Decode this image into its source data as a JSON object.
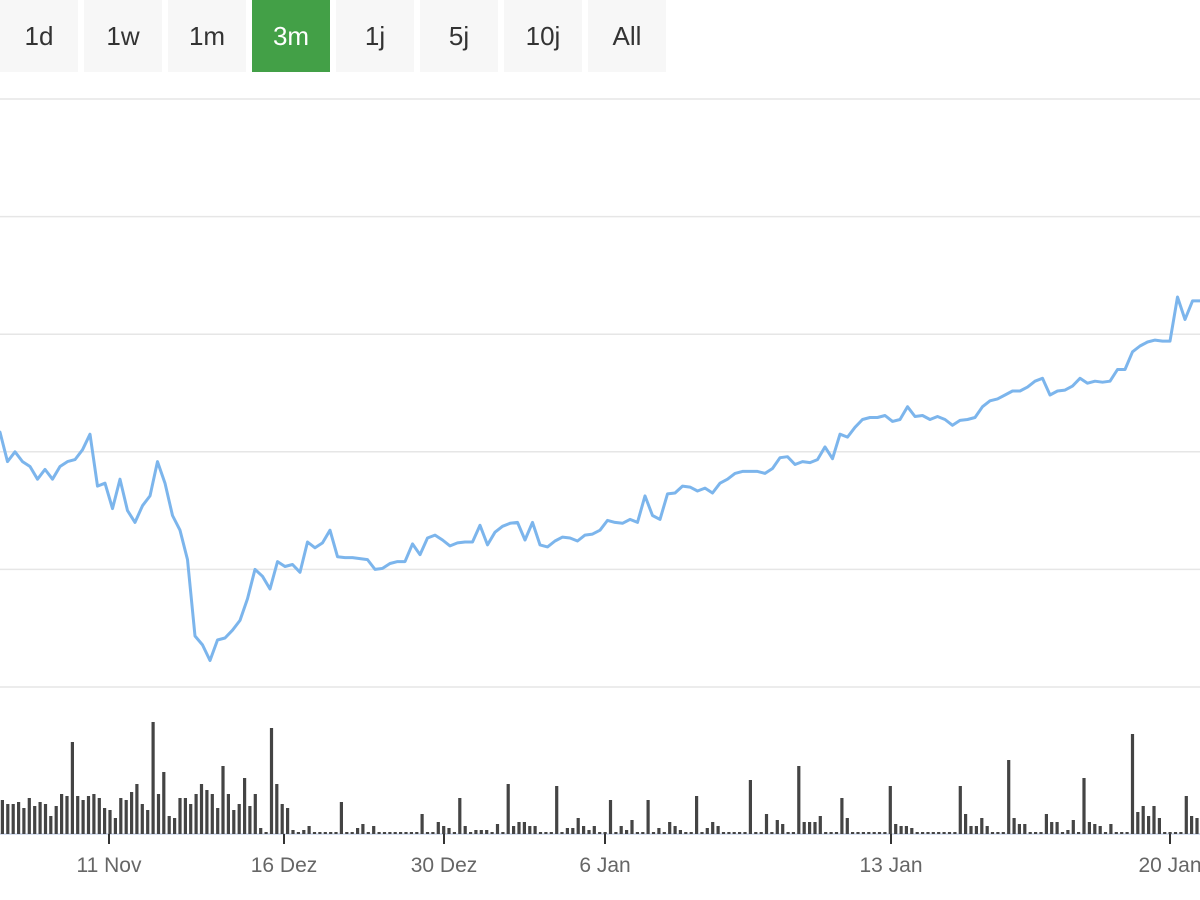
{
  "range_tabs": [
    {
      "label": "1d",
      "active": false
    },
    {
      "label": "1w",
      "active": false
    },
    {
      "label": "1m",
      "active": false
    },
    {
      "label": "3m",
      "active": true
    },
    {
      "label": "1j",
      "active": false
    },
    {
      "label": "5j",
      "active": false
    },
    {
      "label": "10j",
      "active": false
    },
    {
      "label": "All",
      "active": false
    }
  ],
  "colors": {
    "active_tab": "#43a047",
    "price_line": "#7cb5ec",
    "volume_bars": "#444444",
    "grid": "#e6e6e6"
  },
  "chart_data": [
    {
      "type": "line",
      "name": "price",
      "title": "",
      "xlabel": "",
      "ylabel": "",
      "grid": true,
      "ylim": [
        0,
        6
      ],
      "y_ticks_shown": false,
      "x_tick_labels": [
        "11 Nov",
        "16 Dez",
        "30 Dez",
        "6 Jan",
        "13 Jan",
        "20 Jan"
      ],
      "values": [
        2.6,
        2.3,
        2.4,
        2.3,
        2.25,
        2.12,
        2.22,
        2.12,
        2.25,
        2.3,
        2.32,
        2.42,
        2.58,
        2.05,
        2.08,
        1.82,
        2.12,
        1.8,
        1.68,
        1.85,
        1.95,
        2.3,
        2.08,
        1.75,
        1.6,
        1.3,
        0.52,
        0.43,
        0.27,
        0.48,
        0.5,
        0.58,
        0.68,
        0.9,
        1.2,
        1.13,
        1.0,
        1.28,
        1.23,
        1.25,
        1.17,
        1.48,
        1.42,
        1.47,
        1.6,
        1.33,
        1.32,
        1.32,
        1.31,
        1.3,
        1.2,
        1.21,
        1.26,
        1.28,
        1.28,
        1.46,
        1.35,
        1.52,
        1.55,
        1.5,
        1.44,
        1.47,
        1.48,
        1.48,
        1.65,
        1.45,
        1.58,
        1.64,
        1.67,
        1.68,
        1.5,
        1.68,
        1.45,
        1.43,
        1.49,
        1.53,
        1.52,
        1.49,
        1.55,
        1.56,
        1.6,
        1.7,
        1.68,
        1.67,
        1.71,
        1.68,
        1.95,
        1.75,
        1.71,
        1.97,
        1.98,
        2.05,
        2.04,
        2.0,
        2.03,
        1.98,
        2.08,
        2.12,
        2.18,
        2.2,
        2.2,
        2.2,
        2.18,
        2.23,
        2.34,
        2.35,
        2.27,
        2.3,
        2.29,
        2.32,
        2.45,
        2.33,
        2.58,
        2.55,
        2.65,
        2.73,
        2.75,
        2.75,
        2.77,
        2.71,
        2.73,
        2.86,
        2.76,
        2.77,
        2.73,
        2.76,
        2.73,
        2.67,
        2.72,
        2.73,
        2.75,
        2.86,
        2.92,
        2.94,
        2.98,
        3.02,
        3.02,
        3.06,
        3.12,
        3.15,
        2.98,
        3.02,
        3.03,
        3.07,
        3.15,
        3.1,
        3.12,
        3.11,
        3.12,
        3.24,
        3.24,
        3.42,
        3.48,
        3.52,
        3.54,
        3.53,
        3.53,
        3.98,
        3.75,
        3.94,
        3.94
      ]
    },
    {
      "type": "bar",
      "name": "volume",
      "grid": false,
      "values": [
        34,
        30,
        30,
        32,
        26,
        36,
        28,
        32,
        30,
        18,
        28,
        40,
        38,
        92,
        38,
        34,
        38,
        40,
        36,
        26,
        24,
        16,
        36,
        34,
        42,
        50,
        30,
        24,
        112,
        40,
        62,
        18,
        16,
        36,
        36,
        30,
        40,
        50,
        44,
        40,
        26,
        68,
        40,
        24,
        30,
        56,
        28,
        40,
        6,
        2,
        106,
        50,
        30,
        26,
        4,
        2,
        4,
        8,
        2,
        2,
        2,
        2,
        2,
        32,
        2,
        2,
        6,
        10,
        2,
        8,
        2,
        2,
        2,
        2,
        2,
        2,
        2,
        2,
        20,
        2,
        2,
        12,
        8,
        6,
        2,
        36,
        8,
        2,
        4,
        4,
        4,
        2,
        10,
        2,
        50,
        8,
        12,
        12,
        8,
        8,
        2,
        2,
        2,
        48,
        2,
        6,
        6,
        16,
        8,
        4,
        8,
        2,
        2,
        34,
        2,
        8,
        4,
        14,
        2,
        2,
        34,
        2,
        6,
        2,
        12,
        8,
        4,
        2,
        2,
        38,
        2,
        6,
        12,
        8,
        2,
        2,
        2,
        2,
        2,
        54,
        2,
        2,
        20,
        2,
        14,
        10,
        2,
        2,
        68,
        12,
        12,
        12,
        18,
        2,
        2,
        2,
        36,
        16,
        2,
        2,
        2,
        2,
        2,
        2,
        2,
        48,
        10,
        8,
        8,
        6,
        2,
        2,
        2,
        2,
        2,
        2,
        2,
        2,
        48,
        20,
        8,
        8,
        16,
        8,
        2,
        2,
        2,
        74,
        16,
        10,
        10,
        2,
        2,
        2,
        20,
        12,
        12,
        2,
        4,
        14,
        2,
        56,
        12,
        10,
        8,
        2,
        10,
        2,
        2,
        2,
        100,
        22,
        28,
        18,
        28,
        16,
        2,
        2,
        2,
        2,
        38,
        18,
        16
      ]
    }
  ]
}
